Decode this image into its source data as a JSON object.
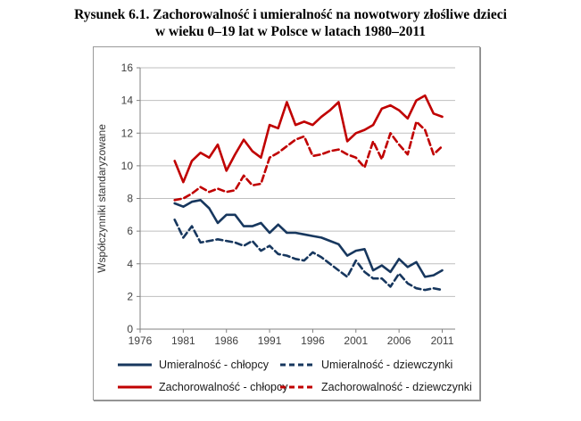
{
  "title": {
    "line1": "Rysunek 6.1. Zachorowalność i umieralność na nowotwory złośliwe dzieci",
    "line2": "w wieku 0–19 lat w Polsce w latach 1980–2011"
  },
  "colors": {
    "mortality_line": "#17375E",
    "incidence_line": "#C00000",
    "grid": "#BFBFBF",
    "axis": "#808080",
    "tick_text": "#3F3F3F",
    "frame_border": "#9A9A9A"
  },
  "chart_data": {
    "type": "line",
    "title": "",
    "xlabel": "",
    "ylabel": "Współczynniki standaryzowane",
    "xlim": [
      1976,
      2012.5
    ],
    "ylim": [
      0,
      16
    ],
    "x_ticks": [
      1976,
      1981,
      1986,
      1991,
      1996,
      2001,
      2006,
      2011
    ],
    "y_ticks": [
      0,
      2,
      4,
      6,
      8,
      10,
      12,
      14,
      16
    ],
    "grid": true,
    "legend_position": "bottom",
    "x": [
      1980,
      1981,
      1982,
      1983,
      1984,
      1985,
      1986,
      1987,
      1988,
      1989,
      1990,
      1991,
      1992,
      1993,
      1994,
      1995,
      1996,
      1997,
      1998,
      1999,
      2000,
      2001,
      2002,
      2003,
      2004,
      2005,
      2006,
      2007,
      2008,
      2009,
      2010,
      2011
    ],
    "series": [
      {
        "name": "Umieralność - chłopcy",
        "color": "#17375E",
        "dash": "solid",
        "values": [
          7.7,
          7.5,
          7.8,
          7.9,
          7.4,
          6.5,
          7.0,
          7.0,
          6.3,
          6.3,
          6.5,
          5.9,
          6.4,
          5.9,
          5.9,
          5.8,
          5.7,
          5.6,
          5.4,
          5.2,
          4.5,
          4.8,
          4.9,
          3.6,
          3.9,
          3.5,
          4.3,
          3.8,
          4.1,
          3.2,
          3.3,
          3.6
        ]
      },
      {
        "name": "Umieralność - dziewczynki",
        "color": "#17375E",
        "dash": "dashed",
        "values": [
          6.7,
          5.6,
          6.3,
          5.3,
          5.4,
          5.5,
          5.4,
          5.3,
          5.1,
          5.4,
          4.8,
          5.1,
          4.6,
          4.5,
          4.3,
          4.2,
          4.7,
          4.4,
          4.0,
          3.6,
          3.2,
          4.2,
          3.5,
          3.1,
          3.1,
          2.6,
          3.4,
          2.8,
          2.5,
          2.4,
          2.5,
          2.4
        ]
      },
      {
        "name": "Zachorowalność - chłopcy",
        "color": "#C00000",
        "dash": "solid",
        "values": [
          10.3,
          9.0,
          10.3,
          10.8,
          10.5,
          11.3,
          9.7,
          10.7,
          11.6,
          10.9,
          10.5,
          12.5,
          12.3,
          13.9,
          12.5,
          12.7,
          12.5,
          13.0,
          13.4,
          13.9,
          11.5,
          12.0,
          12.2,
          12.5,
          13.5,
          13.7,
          13.4,
          12.9,
          14.0,
          14.3,
          13.2,
          13.0
        ]
      },
      {
        "name": "Zachorowalność - dziewczynki",
        "color": "#C00000",
        "dash": "dashed",
        "values": [
          7.9,
          8.0,
          8.3,
          8.7,
          8.4,
          8.6,
          8.4,
          8.5,
          9.4,
          8.8,
          8.9,
          10.5,
          10.8,
          11.2,
          11.6,
          11.8,
          10.6,
          10.7,
          10.9,
          11.0,
          10.7,
          10.5,
          9.9,
          11.5,
          10.4,
          12.0,
          11.3,
          10.7,
          12.7,
          12.2,
          10.7,
          11.2
        ]
      }
    ]
  }
}
